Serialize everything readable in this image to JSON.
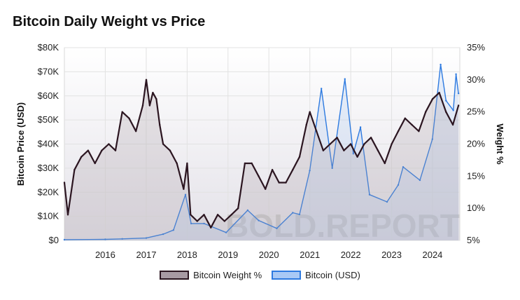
{
  "title": "Bitcoin Daily Weight vs Price",
  "watermark": "BOLD.REPORT",
  "chart_data": {
    "type": "line",
    "x_ticks": [
      "2016",
      "2017",
      "2018",
      "2019",
      "2020",
      "2021",
      "2022",
      "2023",
      "2024"
    ],
    "x_range": [
      "2015-01-01",
      "2024-09-01"
    ],
    "y_left": {
      "label": "Bitcoin Price (USD)",
      "ticks": [
        "$0",
        "$10K",
        "$20K",
        "$30K",
        "$40K",
        "$50K",
        "$60K",
        "$70K",
        "$80K"
      ],
      "range": [
        0,
        80000
      ]
    },
    "y_right": {
      "label": "Weight %",
      "ticks": [
        "5%",
        "10%",
        "15%",
        "20%",
        "25%",
        "30%",
        "35%"
      ],
      "range": [
        5,
        35
      ]
    },
    "grid": true,
    "legend_position": "bottom",
    "series": [
      {
        "name": "Bitcoin Weight %",
        "axis": "right",
        "color": "#2b1520",
        "fill": "#a89aa3",
        "points": [
          [
            "2015-01-01",
            14
          ],
          [
            "2015-02-01",
            9
          ],
          [
            "2015-04-01",
            16
          ],
          [
            "2015-06-01",
            18
          ],
          [
            "2015-08-01",
            19
          ],
          [
            "2015-10-01",
            17
          ],
          [
            "2015-12-01",
            19
          ],
          [
            "2016-02-01",
            20
          ],
          [
            "2016-04-01",
            19
          ],
          [
            "2016-06-01",
            25
          ],
          [
            "2016-08-01",
            24
          ],
          [
            "2016-10-01",
            22
          ],
          [
            "2016-12-01",
            26
          ],
          [
            "2017-01-01",
            30
          ],
          [
            "2017-02-01",
            26
          ],
          [
            "2017-03-01",
            28
          ],
          [
            "2017-04-01",
            27
          ],
          [
            "2017-05-01",
            23
          ],
          [
            "2017-06-01",
            20
          ],
          [
            "2017-08-01",
            19
          ],
          [
            "2017-10-01",
            17
          ],
          [
            "2017-12-01",
            13
          ],
          [
            "2018-01-01",
            17
          ],
          [
            "2018-02-01",
            9
          ],
          [
            "2018-04-01",
            8
          ],
          [
            "2018-06-01",
            9
          ],
          [
            "2018-08-01",
            7
          ],
          [
            "2018-10-01",
            9
          ],
          [
            "2018-12-01",
            8
          ],
          [
            "2019-02-01",
            9
          ],
          [
            "2019-04-01",
            10
          ],
          [
            "2019-06-01",
            17
          ],
          [
            "2019-08-01",
            17
          ],
          [
            "2019-10-01",
            15
          ],
          [
            "2019-12-01",
            13
          ],
          [
            "2020-02-01",
            16
          ],
          [
            "2020-04-01",
            14
          ],
          [
            "2020-06-01",
            14
          ],
          [
            "2020-08-01",
            16
          ],
          [
            "2020-10-01",
            18
          ],
          [
            "2020-12-01",
            23
          ],
          [
            "2021-01-01",
            25
          ],
          [
            "2021-03-01",
            22
          ],
          [
            "2021-05-01",
            19
          ],
          [
            "2021-07-01",
            20
          ],
          [
            "2021-09-01",
            21
          ],
          [
            "2021-11-01",
            19
          ],
          [
            "2022-01-01",
            20
          ],
          [
            "2022-03-01",
            18
          ],
          [
            "2022-05-01",
            20
          ],
          [
            "2022-07-01",
            21
          ],
          [
            "2022-09-01",
            19
          ],
          [
            "2022-11-01",
            17
          ],
          [
            "2023-01-01",
            20
          ],
          [
            "2023-03-01",
            22
          ],
          [
            "2023-05-01",
            24
          ],
          [
            "2023-07-01",
            23
          ],
          [
            "2023-09-01",
            22
          ],
          [
            "2023-11-01",
            25
          ],
          [
            "2024-01-01",
            27
          ],
          [
            "2024-03-01",
            28
          ],
          [
            "2024-05-01",
            25
          ],
          [
            "2024-07-01",
            23
          ],
          [
            "2024-08-20",
            26
          ]
        ]
      },
      {
        "name": "Bitcoin (USD)",
        "axis": "left",
        "color": "#2d7ae0",
        "fill": "#a9c9f5",
        "points": [
          [
            "2015-01-01",
            300
          ],
          [
            "2016-01-01",
            430
          ],
          [
            "2016-06-01",
            650
          ],
          [
            "2017-01-01",
            1000
          ],
          [
            "2017-06-01",
            2600
          ],
          [
            "2017-09-01",
            4300
          ],
          [
            "2017-12-17",
            19000
          ],
          [
            "2018-02-06",
            7000
          ],
          [
            "2018-06-01",
            7000
          ],
          [
            "2018-12-15",
            3300
          ],
          [
            "2019-06-26",
            12500
          ],
          [
            "2019-10-01",
            8300
          ],
          [
            "2020-03-12",
            5000
          ],
          [
            "2020-08-01",
            11500
          ],
          [
            "2020-10-01",
            10800
          ],
          [
            "2020-12-31",
            29000
          ],
          [
            "2021-04-14",
            63000
          ],
          [
            "2021-07-20",
            30000
          ],
          [
            "2021-11-10",
            67000
          ],
          [
            "2022-01-24",
            36000
          ],
          [
            "2022-03-29",
            47000
          ],
          [
            "2022-06-18",
            19000
          ],
          [
            "2022-11-21",
            16000
          ],
          [
            "2023-03-01",
            23000
          ],
          [
            "2023-04-14",
            30500
          ],
          [
            "2023-09-11",
            25000
          ],
          [
            "2023-12-31",
            42000
          ],
          [
            "2024-03-14",
            73000
          ],
          [
            "2024-05-01",
            58000
          ],
          [
            "2024-07-05",
            54000
          ],
          [
            "2024-07-29",
            69000
          ],
          [
            "2024-08-20",
            61000
          ]
        ]
      }
    ]
  }
}
